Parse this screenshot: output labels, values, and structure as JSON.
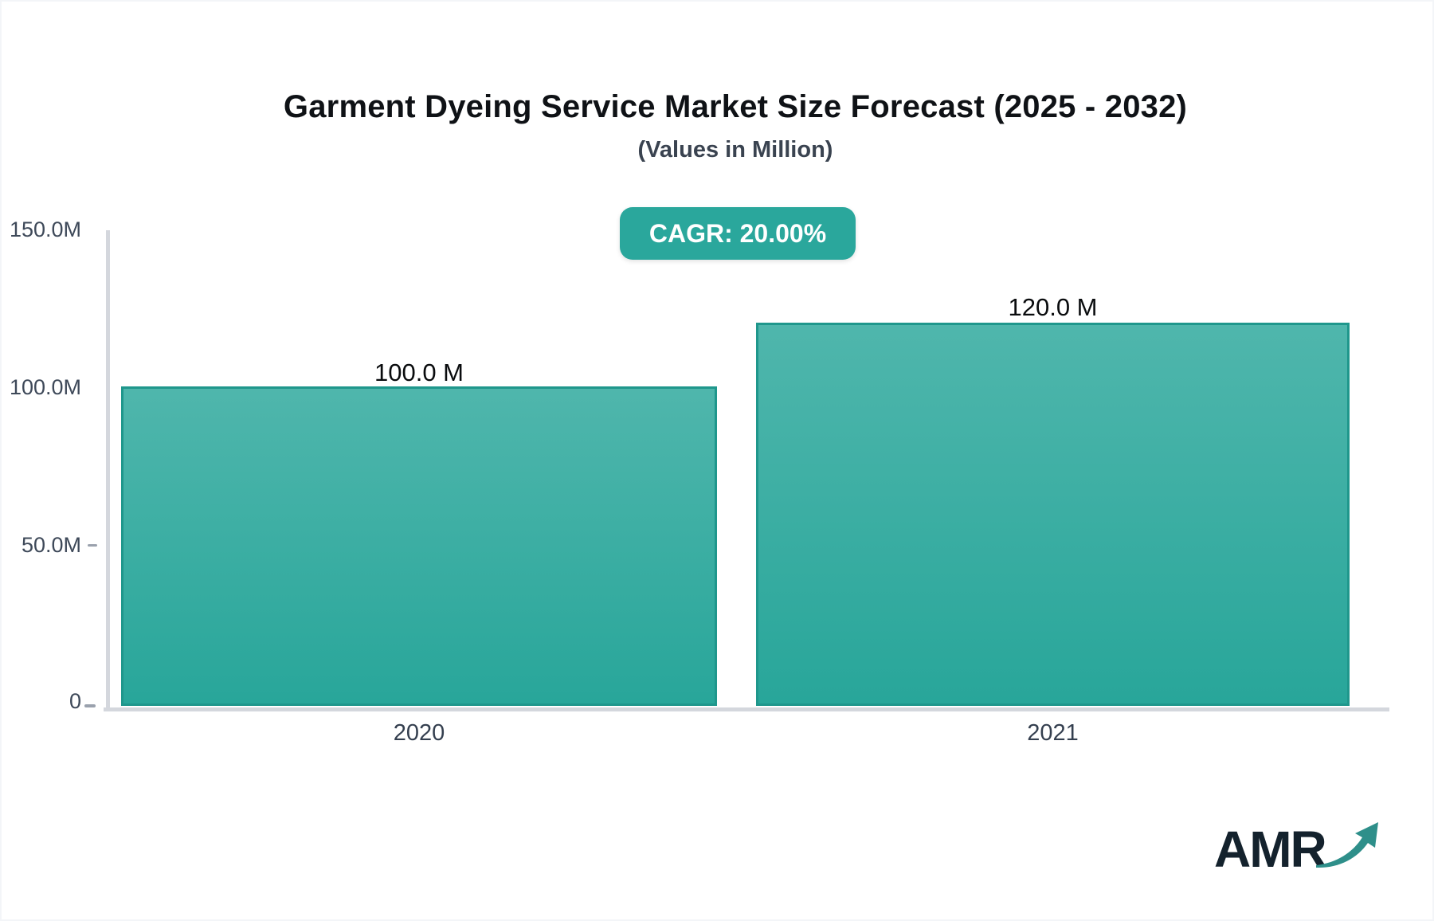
{
  "chart": {
    "title": "Garment Dyeing Service Market Size Forecast (2025 - 2032)",
    "subtitle": "(Values in Million)",
    "cagr_label": "CAGR: 20.00%"
  },
  "chart_data": {
    "type": "bar",
    "title": "Garment Dyeing Service Market Size Forecast (2025 - 2032)",
    "subtitle": "(Values in Million)",
    "categories": [
      "2020",
      "2021"
    ],
    "values": [
      100.0,
      120.0
    ],
    "bar_labels": [
      "100.0 M",
      "120.0 M"
    ],
    "cagr_percent": "20.00%",
    "xlabel": "",
    "ylabel": "",
    "ylim": [
      0,
      150
    ],
    "yticks": [
      "0",
      "50.0M",
      "100.0M",
      "150.0M"
    ],
    "grid": "off",
    "legend": "none",
    "colors": {
      "accent": "#2aa79c",
      "bar_top": "#4fb6ac",
      "bar_bottom": "#28a69a",
      "bar_border": "#1f978c",
      "axis": "#d4d7dd"
    }
  },
  "logo": {
    "text": "AMR"
  }
}
